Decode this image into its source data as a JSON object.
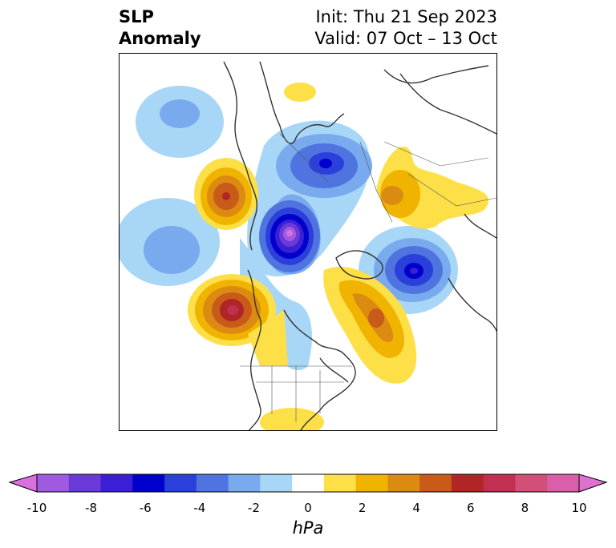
{
  "title": {
    "left_line1": "SLP",
    "left_line2": "Anomaly",
    "right_line1": "Init: Thu 21 Sep 2023",
    "right_line2": "Valid: 07 Oct – 13 Oct"
  },
  "colorbar": {
    "unit": "hPa",
    "ticks": [
      "-10",
      "-8",
      "-6",
      "-4",
      "-2",
      "0",
      "2",
      "4",
      "6",
      "8",
      "10"
    ],
    "colors": [
      "#da70de",
      "#a05ae0",
      "#6a3ad8",
      "#3a1fd6",
      "#0000cc",
      "#2b3fda",
      "#4f74e0",
      "#79aaee",
      "#a8d6f6",
      "#ffffff",
      "#fde047",
      "#f0b400",
      "#dc8b12",
      "#c85a1a",
      "#b02626",
      "#c03050",
      "#d0507a",
      "#d85fa8",
      "#e070d0"
    ],
    "extend": "both"
  },
  "colors": {
    "negative_strong": "#1a00d0",
    "negative_weak": "#a8d6f6",
    "positive_weak": "#fde047",
    "positive_strong": "#b02626",
    "coastline": "#333333"
  }
}
